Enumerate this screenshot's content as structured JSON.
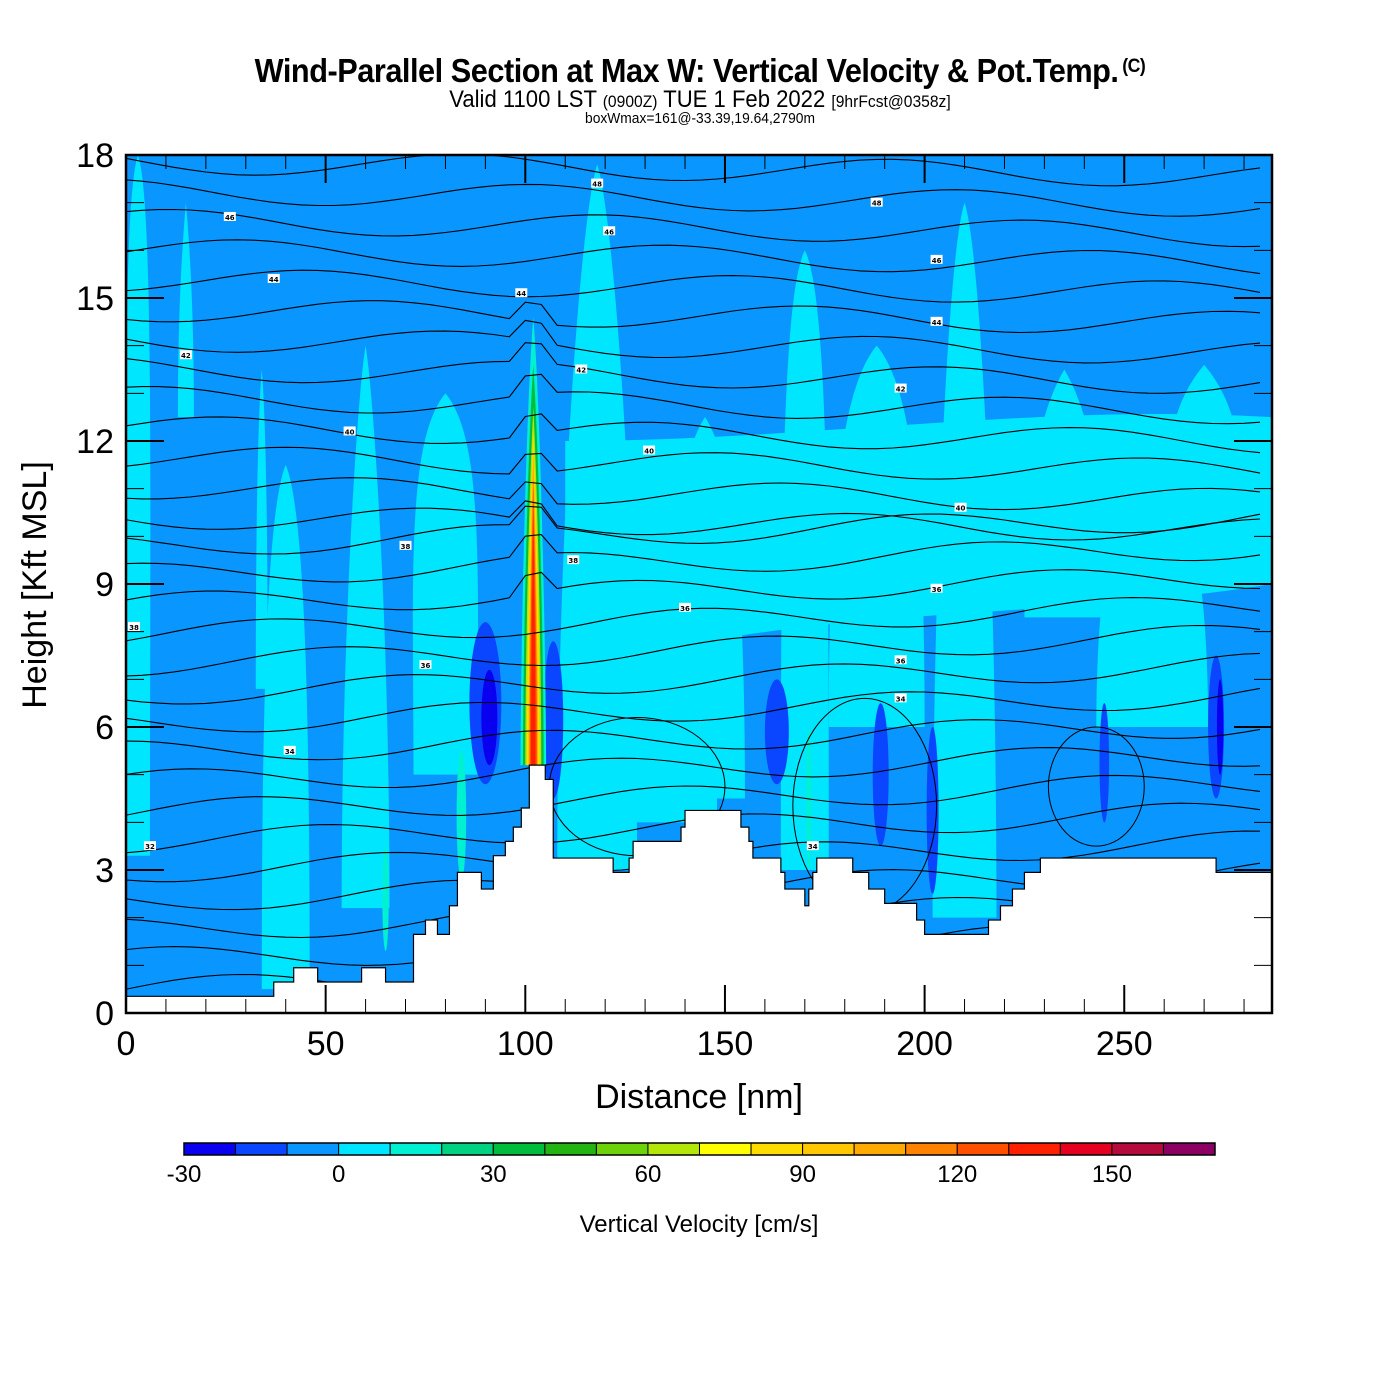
{
  "header": {
    "title": "Wind-Parallel Section at Max W: Vertical Velocity & Pot.Temp.",
    "title_mark": "(C)",
    "valid_prefix": "Valid 1100 LST",
    "valid_utc": "(0900Z)",
    "valid_date": "TUE 1 Feb 2022",
    "forecast_info": "[9hrFcst@0358z]",
    "box_wmax": "boxWmax=161@-33.39,19.64,2790m"
  },
  "chart_data": {
    "type": "heatmap",
    "title": "Wind-Parallel Section at Max W: Vertical Velocity & Pot.Temp.",
    "xlabel": "Distance [nm]",
    "ylabel": "Height [Kft MSL]",
    "xlim": [
      0,
      287
    ],
    "ylim": [
      0,
      18
    ],
    "x_ticks": [
      0,
      50,
      100,
      150,
      200,
      250
    ],
    "y_ticks": [
      0,
      3,
      6,
      9,
      12,
      15,
      18
    ],
    "x_tick_labels": [
      "0",
      "50",
      "100",
      "150",
      "200",
      "250"
    ],
    "y_tick_labels": [
      "0",
      "3",
      "6",
      "9",
      "12",
      "15",
      "18"
    ],
    "colorbar": {
      "title": "Vertical Velocity [cm/s]",
      "levels": [
        -30,
        -20,
        -10,
        0,
        10,
        20,
        30,
        40,
        50,
        60,
        70,
        80,
        90,
        100,
        110,
        120,
        130,
        140,
        150,
        160,
        170
      ],
      "tick_values": [
        -30,
        0,
        30,
        60,
        90,
        120,
        150
      ],
      "tick_labels": [
        "-30",
        "0",
        "30",
        "60",
        "90",
        "120",
        "150"
      ],
      "colors": [
        "#0a00f0",
        "#0a46ff",
        "#0a96ff",
        "#00e6ff",
        "#00f0d2",
        "#00d282",
        "#00be3c",
        "#23b414",
        "#6ed20a",
        "#b4e60a",
        "#ffff00",
        "#ffdc00",
        "#ffc800",
        "#ffaa00",
        "#ff8200",
        "#ff5000",
        "#ff2000",
        "#e60020",
        "#b40a3c",
        "#8c0064"
      ]
    },
    "max_vertical_velocity_cm_s": 161,
    "max_location": {
      "lat": -33.39,
      "lon": 19.64,
      "height_m": 2790
    },
    "updraft_core": {
      "x_nm": 102,
      "base_kft": 5.2,
      "top_kft": 14.5
    },
    "theta_contour_labels": [
      {
        "value": "48",
        "x_nm": 118,
        "y_kft": 17.4
      },
      {
        "value": "48",
        "x_nm": 188,
        "y_kft": 17.0
      },
      {
        "value": "46",
        "x_nm": 26,
        "y_kft": 16.7
      },
      {
        "value": "46",
        "x_nm": 121,
        "y_kft": 16.4
      },
      {
        "value": "46",
        "x_nm": 203,
        "y_kft": 15.8
      },
      {
        "value": "44",
        "x_nm": 37,
        "y_kft": 15.4
      },
      {
        "value": "44",
        "x_nm": 99,
        "y_kft": 15.1
      },
      {
        "value": "44",
        "x_nm": 203,
        "y_kft": 14.5
      },
      {
        "value": "42",
        "x_nm": 15,
        "y_kft": 13.8
      },
      {
        "value": "42",
        "x_nm": 114,
        "y_kft": 13.5
      },
      {
        "value": "42",
        "x_nm": 194,
        "y_kft": 13.1
      },
      {
        "value": "40",
        "x_nm": 56,
        "y_kft": 12.2
      },
      {
        "value": "40",
        "x_nm": 131,
        "y_kft": 11.8
      },
      {
        "value": "40",
        "x_nm": 209,
        "y_kft": 10.6
      },
      {
        "value": "38",
        "x_nm": 70,
        "y_kft": 9.8
      },
      {
        "value": "38",
        "x_nm": 112,
        "y_kft": 9.5
      },
      {
        "value": "38",
        "x_nm": 2,
        "y_kft": 8.1
      },
      {
        "value": "36",
        "x_nm": 140,
        "y_kft": 8.5
      },
      {
        "value": "36",
        "x_nm": 203,
        "y_kft": 8.9
      },
      {
        "value": "36",
        "x_nm": 75,
        "y_kft": 7.3
      },
      {
        "value": "36",
        "x_nm": 194,
        "y_kft": 7.4
      },
      {
        "value": "34",
        "x_nm": 41,
        "y_kft": 5.5
      },
      {
        "value": "34",
        "x_nm": 194,
        "y_kft": 6.6
      },
      {
        "value": "34",
        "x_nm": 172,
        "y_kft": 3.5
      },
      {
        "value": "32",
        "x_nm": 6,
        "y_kft": 3.5
      }
    ],
    "terrain_profile_kft": [
      [
        0,
        0.35
      ],
      [
        36,
        0.35
      ],
      [
        37,
        0.65
      ],
      [
        41,
        0.65
      ],
      [
        42,
        0.95
      ],
      [
        47,
        0.95
      ],
      [
        48,
        0.65
      ],
      [
        58,
        0.65
      ],
      [
        59,
        0.95
      ],
      [
        64,
        0.95
      ],
      [
        65,
        0.65
      ],
      [
        71,
        0.65
      ],
      [
        72,
        1.65
      ],
      [
        74,
        1.65
      ],
      [
        75,
        1.95
      ],
      [
        77,
        1.95
      ],
      [
        78,
        1.65
      ],
      [
        80,
        1.65
      ],
      [
        81,
        2.25
      ],
      [
        82,
        2.25
      ],
      [
        83,
        2.95
      ],
      [
        88,
        2.95
      ],
      [
        89,
        2.6
      ],
      [
        91,
        2.6
      ],
      [
        92,
        3.3
      ],
      [
        94,
        3.3
      ],
      [
        95,
        3.6
      ],
      [
        96,
        3.6
      ],
      [
        97,
        3.9
      ],
      [
        98,
        3.9
      ],
      [
        99,
        4.3
      ],
      [
        100,
        4.3
      ],
      [
        101,
        5.2
      ],
      [
        104,
        5.2
      ],
      [
        105,
        4.9
      ],
      [
        106,
        4.9
      ],
      [
        107,
        3.25
      ],
      [
        121,
        3.25
      ],
      [
        122,
        2.95
      ],
      [
        125,
        2.95
      ],
      [
        126,
        3.25
      ],
      [
        127,
        3.6
      ],
      [
        138,
        3.6
      ],
      [
        139,
        3.9
      ],
      [
        140,
        4.25
      ],
      [
        153,
        4.25
      ],
      [
        154,
        3.9
      ],
      [
        156,
        3.6
      ],
      [
        157,
        3.25
      ],
      [
        163,
        3.25
      ],
      [
        164,
        2.95
      ],
      [
        165,
        2.6
      ],
      [
        169,
        2.6
      ],
      [
        170,
        2.25
      ],
      [
        171,
        2.6
      ],
      [
        172,
        2.95
      ],
      [
        173,
        3.25
      ],
      [
        181,
        3.25
      ],
      [
        182,
        2.95
      ],
      [
        185,
        2.95
      ],
      [
        186,
        2.6
      ],
      [
        190,
        2.3
      ],
      [
        197,
        2.3
      ],
      [
        198,
        1.95
      ],
      [
        200,
        1.65
      ],
      [
        215,
        1.65
      ],
      [
        216,
        1.95
      ],
      [
        219,
        2.25
      ],
      [
        222,
        2.6
      ],
      [
        225,
        2.95
      ],
      [
        229,
        3.25
      ],
      [
        272,
        3.25
      ],
      [
        273,
        2.95
      ],
      [
        287,
        2.95
      ]
    ]
  }
}
